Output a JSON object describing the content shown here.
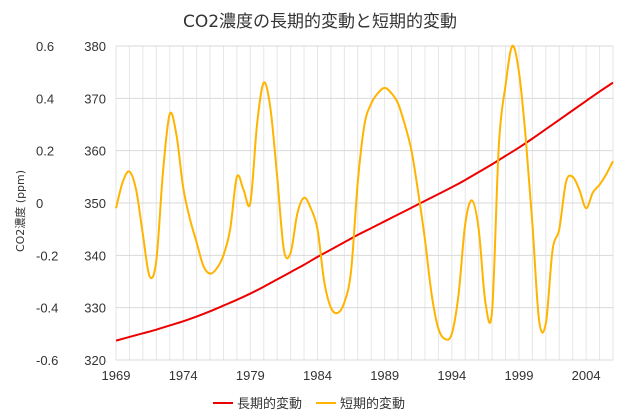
{
  "chart_data": {
    "type": "line",
    "title": "CO2濃度の長期的変動と短期的変動",
    "ylabel": "CO2濃度 (ppm)",
    "xlim": [
      1969,
      2006
    ],
    "x_ticks": [
      1969,
      1974,
      1979,
      1984,
      1989,
      1994,
      1999,
      2004
    ],
    "ylim_left": [
      320,
      380
    ],
    "y_left_ticks": [
      320,
      330,
      340,
      350,
      360,
      370,
      380
    ],
    "ylim_right": [
      -0.6,
      0.6
    ],
    "y_right_ticks": [
      "-0.6",
      "-0.4",
      "-0.2",
      "0",
      "0.2",
      "0.4",
      "0.6"
    ],
    "grid": true,
    "legend_position": "bottom",
    "series": [
      {
        "name": "長期的変動",
        "color": "#ee0000",
        "axis": "left",
        "x": [
          1969,
          1970,
          1971,
          1972,
          1973,
          1974,
          1975,
          1976,
          1977,
          1978,
          1979,
          1980,
          1981,
          1982,
          1983,
          1984,
          1985,
          1986,
          1987,
          1988,
          1989,
          1990,
          1991,
          1992,
          1993,
          1994,
          1995,
          1996,
          1997,
          1998,
          1999,
          2000,
          2001,
          2002,
          2003,
          2004,
          2005,
          2006
        ],
        "values": [
          323.7,
          324.4,
          325.1,
          325.8,
          326.6,
          327.4,
          328.3,
          329.3,
          330.4,
          331.5,
          332.7,
          334.0,
          335.4,
          336.8,
          338.2,
          339.7,
          341.1,
          342.5,
          343.9,
          345.2,
          346.5,
          347.8,
          349.1,
          350.4,
          351.7,
          353.0,
          354.4,
          355.9,
          357.4,
          359.0,
          360.6,
          362.3,
          364.1,
          365.9,
          367.7,
          369.5,
          371.3,
          373.0
        ]
      },
      {
        "name": "短期的変動",
        "color": "#ffb400",
        "axis": "right",
        "x": [
          1969,
          1969.5,
          1970,
          1970.5,
          1971,
          1971.5,
          1972,
          1972.5,
          1973,
          1973.5,
          1974,
          1974.5,
          1975,
          1975.5,
          1976,
          1976.5,
          1977,
          1977.5,
          1978,
          1978.5,
          1979,
          1979.5,
          1980,
          1980.5,
          1981,
          1981.5,
          1982,
          1982.5,
          1983,
          1983.5,
          1984,
          1984.5,
          1985,
          1985.5,
          1986,
          1986.5,
          1987,
          1987.5,
          1988,
          1988.5,
          1989,
          1989.5,
          1990,
          1990.5,
          1991,
          1991.5,
          1992,
          1992.5,
          1993,
          1993.5,
          1994,
          1994.5,
          1995,
          1995.5,
          1996,
          1996.5,
          1997,
          1997.5,
          1998,
          1998.5,
          1999,
          1999.5,
          2000,
          2000.5,
          2001,
          2001.5,
          2002,
          2002.5,
          2003,
          2003.5,
          2004,
          2004.5,
          2005,
          2005.5,
          2006
        ],
        "values": [
          -0.02,
          0.08,
          0.12,
          0.05,
          -0.12,
          -0.28,
          -0.22,
          0.12,
          0.34,
          0.26,
          0.06,
          -0.06,
          -0.15,
          -0.24,
          -0.27,
          -0.25,
          -0.2,
          -0.1,
          0.1,
          0.05,
          0.0,
          0.3,
          0.46,
          0.36,
          0.1,
          -0.18,
          -0.19,
          -0.04,
          0.02,
          -0.02,
          -0.1,
          -0.3,
          -0.4,
          -0.42,
          -0.38,
          -0.26,
          0.08,
          0.3,
          0.38,
          0.42,
          0.44,
          0.42,
          0.38,
          0.3,
          0.2,
          0.04,
          -0.14,
          -0.35,
          -0.48,
          -0.52,
          -0.5,
          -0.35,
          -0.08,
          0.01,
          -0.1,
          -0.38,
          -0.41,
          0.22,
          0.45,
          0.6,
          0.5,
          0.25,
          -0.08,
          -0.45,
          -0.46,
          -0.18,
          -0.1,
          0.08,
          0.1,
          0.05,
          -0.02,
          0.04,
          0.07,
          0.11,
          0.16
        ]
      }
    ]
  }
}
